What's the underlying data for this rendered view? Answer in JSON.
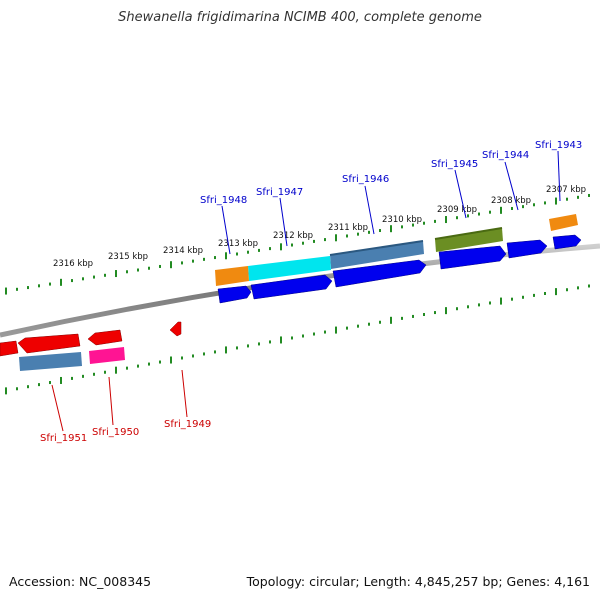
{
  "title": "Shewanella frigidimarina NCIMB 400, complete genome",
  "accession": "Accession: NC_008345",
  "topology": "Topology: circular; Length: 4,845,257 bp; Genes: 4,161",
  "colors": {
    "forward_label": "#0000cc",
    "reverse_label": "#cc0000",
    "tick": "#228b22",
    "backbone": "#888888",
    "blue": "#0000ee",
    "red": "#ee0000",
    "steel": "#4a7fb0",
    "cyan": "#00e5ee",
    "orange": "#f08a10",
    "olive": "#6b8e23",
    "magenta": "#ff1493"
  },
  "scale_labels": [
    {
      "text": "2307 kbp",
      "name": "kbp-2307"
    },
    {
      "text": "2308 kbp",
      "name": "kbp-2308"
    },
    {
      "text": "2309 kbp",
      "name": "kbp-2309"
    },
    {
      "text": "2310 kbp",
      "name": "kbp-2310"
    },
    {
      "text": "2311 kbp",
      "name": "kbp-2311"
    },
    {
      "text": "2312 kbp",
      "name": "kbp-2312"
    },
    {
      "text": "2313 kbp",
      "name": "kbp-2313"
    },
    {
      "text": "2314 kbp",
      "name": "kbp-2314"
    },
    {
      "text": "2315 kbp",
      "name": "kbp-2315"
    },
    {
      "text": "2316 kbp",
      "name": "kbp-2316"
    }
  ],
  "forward_genes": [
    {
      "label": "Sfri_1943"
    },
    {
      "label": "Sfri_1944"
    },
    {
      "label": "Sfri_1945"
    },
    {
      "label": "Sfri_1946"
    },
    {
      "label": "Sfri_1947"
    },
    {
      "label": "Sfri_1948"
    }
  ],
  "reverse_genes": [
    {
      "label": "Sfri_1949"
    },
    {
      "label": "Sfri_1950"
    },
    {
      "label": "Sfri_1951"
    }
  ]
}
